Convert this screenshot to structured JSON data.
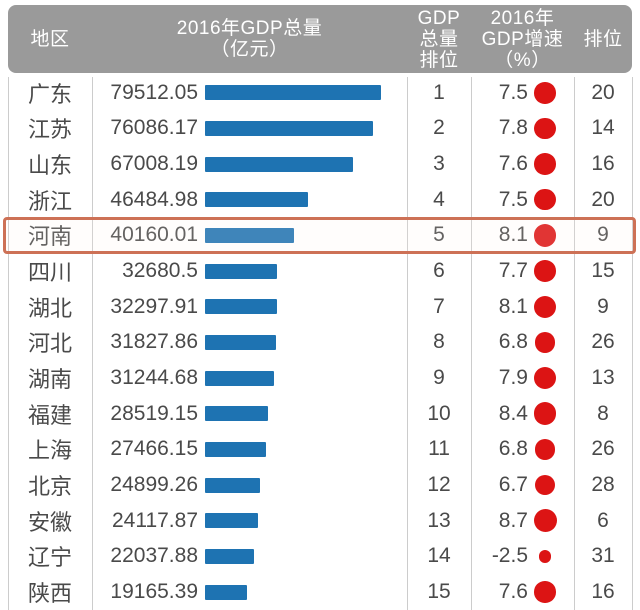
{
  "colors": {
    "bar_blue": "#1e73b2",
    "dot_red": "#dc1414",
    "header_bg": "#9a9a9a",
    "highlight_border": "#cd7156",
    "text_dark": "#4a4a4a",
    "divider": "#cccccc"
  },
  "table": {
    "header": {
      "region": "地区",
      "gdp_total": "2016年GDP总量\n（亿元）",
      "gdp_rank": "GDP\n总量\n排位",
      "growth": "2016年\nGDP增速\n（%）",
      "growth_rank": "排位"
    },
    "highlighted_region": "河南",
    "rows": [
      {
        "region": "广东",
        "gdp": "79512.05",
        "gdp_rank": "1",
        "growth": "7.5",
        "growth_rank": "20"
      },
      {
        "region": "江苏",
        "gdp": "76086.17",
        "gdp_rank": "2",
        "growth": "7.8",
        "growth_rank": "14"
      },
      {
        "region": "山东",
        "gdp": "67008.19",
        "gdp_rank": "3",
        "growth": "7.6",
        "growth_rank": "16"
      },
      {
        "region": "浙江",
        "gdp": "46484.98",
        "gdp_rank": "4",
        "growth": "7.5",
        "growth_rank": "20"
      },
      {
        "region": "河南",
        "gdp": "40160.01",
        "gdp_rank": "5",
        "growth": "8.1",
        "growth_rank": "9"
      },
      {
        "region": "四川",
        "gdp": "32680.5",
        "gdp_rank": "6",
        "growth": "7.7",
        "growth_rank": "15"
      },
      {
        "region": "湖北",
        "gdp": "32297.91",
        "gdp_rank": "7",
        "growth": "8.1",
        "growth_rank": "9"
      },
      {
        "region": "河北",
        "gdp": "31827.86",
        "gdp_rank": "8",
        "growth": "6.8",
        "growth_rank": "26"
      },
      {
        "region": "湖南",
        "gdp": "31244.68",
        "gdp_rank": "9",
        "growth": "7.9",
        "growth_rank": "13"
      },
      {
        "region": "福建",
        "gdp": "28519.15",
        "gdp_rank": "10",
        "growth": "8.4",
        "growth_rank": "8"
      },
      {
        "region": "上海",
        "gdp": "27466.15",
        "gdp_rank": "11",
        "growth": "6.8",
        "growth_rank": "26"
      },
      {
        "region": "北京",
        "gdp": "24899.26",
        "gdp_rank": "12",
        "growth": "6.7",
        "growth_rank": "28"
      },
      {
        "region": "安徽",
        "gdp": "24117.87",
        "gdp_rank": "13",
        "growth": "8.7",
        "growth_rank": "6"
      },
      {
        "region": "辽宁",
        "gdp": "22037.88",
        "gdp_rank": "14",
        "growth": "-2.5",
        "growth_rank": "31"
      },
      {
        "region": "陕西",
        "gdp": "19165.39",
        "gdp_rank": "15",
        "growth": "7.6",
        "growth_rank": "16"
      }
    ]
  },
  "chart_data": {
    "type": "table",
    "columns": [
      "地区",
      "2016年GDP总量（亿元）",
      "GDP总量排位",
      "2016年GDP增速（%）",
      "排位"
    ],
    "rows": [
      [
        "广东",
        79512.05,
        1,
        7.5,
        20
      ],
      [
        "江苏",
        76086.17,
        2,
        7.8,
        14
      ],
      [
        "山东",
        67008.19,
        3,
        7.6,
        16
      ],
      [
        "浙江",
        46484.98,
        4,
        7.5,
        20
      ],
      [
        "河南",
        40160.01,
        5,
        8.1,
        9
      ],
      [
        "四川",
        32680.5,
        6,
        7.7,
        15
      ],
      [
        "湖北",
        32297.91,
        7,
        8.1,
        9
      ],
      [
        "河北",
        31827.86,
        8,
        6.8,
        26
      ],
      [
        "湖南",
        31244.68,
        9,
        7.9,
        13
      ],
      [
        "福建",
        28519.15,
        10,
        8.4,
        8
      ],
      [
        "上海",
        27466.15,
        11,
        6.8,
        26
      ],
      [
        "北京",
        24899.26,
        12,
        6.7,
        28
      ],
      [
        "安徽",
        24117.87,
        13,
        8.7,
        6
      ],
      [
        "辽宁",
        22037.88,
        14,
        -2.5,
        31
      ],
      [
        "陕西",
        19165.39,
        15,
        7.6,
        16
      ]
    ],
    "encodings": {
      "bar_column": "2016年GDP总量（亿元）",
      "bar_color": "#1e73b2",
      "bubble_area_column": "2016年GDP增速（%）",
      "bubble_color": "#dc1414"
    },
    "highlighted_row": "河南",
    "legend_position": "none",
    "grid": "column-dividers-only"
  }
}
